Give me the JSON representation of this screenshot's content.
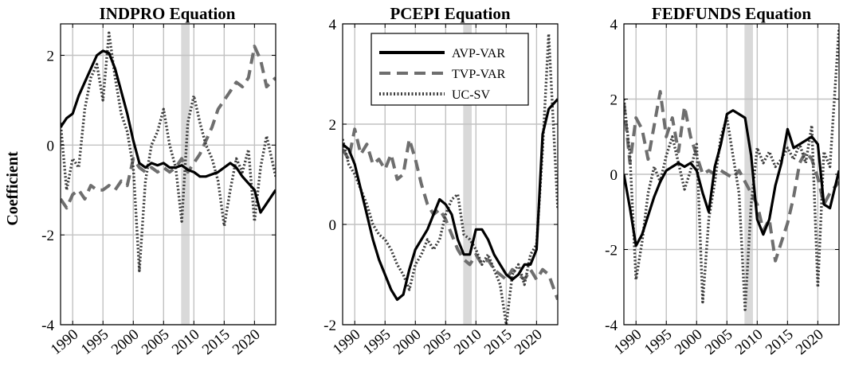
{
  "figure": {
    "ylabel": "Coefficient",
    "legend": {
      "placement": "top-center of second panel",
      "entries": [
        {
          "label": "AVP-VAR",
          "style": "solid",
          "color": "#000000"
        },
        {
          "label": "TVP-VAR",
          "style": "dashed",
          "color": "#6e6e6e"
        },
        {
          "label": "UC-SV",
          "style": "dotted",
          "color": "#3c3c3c"
        }
      ]
    },
    "recession_shading_color": "#d9d9d9"
  },
  "chart_data": [
    {
      "type": "line",
      "title": "INDPRO Equation",
      "xlim": [
        1988,
        2023.5
      ],
      "ylim": [
        -4,
        2.7
      ],
      "xticks": [
        1990,
        1995,
        2000,
        2005,
        2010,
        2015,
        2020
      ],
      "xtick_labels": [
        "1990",
        "1995",
        "2000",
        "2005",
        "2010",
        "2015",
        "2020"
      ],
      "yticks": [
        -4,
        -2,
        0,
        2
      ],
      "ytick_labels": [
        "-4",
        "-2",
        "0",
        "2"
      ],
      "grid": true,
      "recession_bands": [
        [
          2007.9,
          2009.3
        ]
      ],
      "series": [
        {
          "name": "AVP-VAR",
          "style": "solid",
          "x": [
            1988,
            1989,
            1990,
            1991,
            1992,
            1993,
            1994,
            1995,
            1996,
            1997,
            1998,
            1999,
            2000,
            2001,
            2002,
            2003,
            2004,
            2005,
            2006,
            2007,
            2008,
            2009,
            2010,
            2011,
            2012,
            2013,
            2014,
            2015,
            2016,
            2017,
            2018,
            2019,
            2020,
            2021,
            2022,
            2023.5
          ],
          "y": [
            0.4,
            0.6,
            0.7,
            1.1,
            1.4,
            1.7,
            2.0,
            2.1,
            2.05,
            1.7,
            1.2,
            0.7,
            0.1,
            -0.4,
            -0.5,
            -0.4,
            -0.45,
            -0.4,
            -0.5,
            -0.5,
            -0.45,
            -0.55,
            -0.6,
            -0.7,
            -0.7,
            -0.65,
            -0.6,
            -0.5,
            -0.4,
            -0.5,
            -0.7,
            -0.85,
            -1.0,
            -1.5,
            -1.3,
            -1.0
          ]
        },
        {
          "name": "TVP-VAR",
          "style": "dashed",
          "x": [
            1988,
            1989,
            1990,
            1991,
            1992,
            1993,
            1994,
            1995,
            1996,
            1997,
            1998,
            1999,
            2000,
            2001,
            2002,
            2003,
            2004,
            2005,
            2006,
            2007,
            2008,
            2009,
            2010,
            2011,
            2012,
            2013,
            2014,
            2015,
            2016,
            2017,
            2018,
            2019,
            2020,
            2021,
            2022,
            2023.5
          ],
          "y": [
            -1.2,
            -1.4,
            -1.1,
            -1.0,
            -1.2,
            -0.9,
            -1.0,
            -1.0,
            -0.9,
            -1.0,
            -0.8,
            -0.9,
            -0.3,
            -0.5,
            -0.6,
            -0.5,
            -0.6,
            -0.5,
            -0.6,
            -0.5,
            -0.3,
            -0.6,
            -0.4,
            -0.2,
            0.1,
            0.4,
            0.8,
            1.0,
            1.2,
            1.4,
            1.3,
            1.5,
            2.2,
            1.9,
            1.3,
            1.5
          ]
        },
        {
          "name": "UC-SV",
          "style": "dotted",
          "x": [
            1988,
            1989,
            1990,
            1991,
            1992,
            1993,
            1994,
            1995,
            1996,
            1997,
            1998,
            1999,
            2000,
            2001,
            2002,
            2003,
            2004,
            2005,
            2006,
            2007,
            2008,
            2009,
            2010,
            2011,
            2012,
            2013,
            2014,
            2015,
            2016,
            2017,
            2018,
            2019,
            2020,
            2021,
            2022,
            2023.5
          ],
          "y": [
            0.5,
            -1.0,
            -0.3,
            -0.5,
            0.8,
            1.5,
            1.8,
            1.0,
            2.5,
            1.5,
            0.7,
            0.3,
            -0.5,
            -2.8,
            -0.8,
            0.0,
            0.3,
            0.8,
            0.0,
            -0.5,
            -1.7,
            0.5,
            1.1,
            0.5,
            0.0,
            -0.3,
            -0.8,
            -1.8,
            -1.0,
            -0.3,
            -0.6,
            -0.1,
            -1.7,
            -0.5,
            0.2,
            -0.7
          ]
        }
      ]
    },
    {
      "type": "line",
      "title": "PCEPI Equation",
      "xlim": [
        1988,
        2023.5
      ],
      "ylim": [
        -2,
        4
      ],
      "xticks": [
        1990,
        1995,
        2000,
        2005,
        2010,
        2015,
        2020
      ],
      "xtick_labels": [
        "1990",
        "1995",
        "2000",
        "2005",
        "2010",
        "2015",
        "2020"
      ],
      "yticks": [
        -2,
        0,
        2,
        4
      ],
      "ytick_labels": [
        "-2",
        "0",
        "2",
        "4"
      ],
      "grid": true,
      "recession_bands": [
        [
          2007.9,
          2009.3
        ]
      ],
      "series": [
        {
          "name": "AVP-VAR",
          "style": "solid",
          "x": [
            1988,
            1989,
            1990,
            1991,
            1992,
            1993,
            1994,
            1995,
            1996,
            1997,
            1998,
            1999,
            2000,
            2001,
            2002,
            2003,
            2004,
            2005,
            2006,
            2007,
            2008,
            2009,
            2010,
            2011,
            2012,
            2013,
            2014,
            2015,
            2016,
            2017,
            2018,
            2019,
            2020,
            2021,
            2022,
            2023.5
          ],
          "y": [
            1.6,
            1.5,
            1.2,
            0.7,
            0.2,
            -0.3,
            -0.7,
            -1.0,
            -1.3,
            -1.5,
            -1.4,
            -0.9,
            -0.5,
            -0.3,
            -0.1,
            0.2,
            0.5,
            0.4,
            0.2,
            -0.3,
            -0.6,
            -0.6,
            -0.1,
            -0.1,
            -0.3,
            -0.6,
            -0.8,
            -1.0,
            -1.1,
            -1.0,
            -0.8,
            -0.8,
            -0.5,
            1.8,
            2.3,
            2.5
          ]
        },
        {
          "name": "TVP-VAR",
          "style": "dashed",
          "x": [
            1988,
            1989,
            1990,
            1991,
            1992,
            1993,
            1994,
            1995,
            1996,
            1997,
            1998,
            1999,
            2000,
            2001,
            2002,
            2003,
            2004,
            2005,
            2006,
            2007,
            2008,
            2009,
            2010,
            2011,
            2012,
            2013,
            2014,
            2015,
            2016,
            2017,
            2018,
            2019,
            2020,
            2021,
            2022,
            2023.5
          ],
          "y": [
            1.5,
            1.3,
            1.9,
            1.4,
            1.6,
            1.2,
            1.3,
            1.1,
            1.4,
            0.9,
            1.0,
            1.7,
            1.3,
            0.8,
            0.4,
            0.2,
            0.3,
            0.1,
            -0.2,
            -0.5,
            -0.7,
            -0.8,
            -0.6,
            -0.8,
            -0.7,
            -0.9,
            -1.0,
            -1.1,
            -0.9,
            -1.0,
            -1.1,
            -0.9,
            -1.1,
            -0.9,
            -1.0,
            -1.5
          ]
        },
        {
          "name": "UC-SV",
          "style": "dotted",
          "x": [
            1988,
            1989,
            1990,
            1991,
            1992,
            1993,
            1994,
            1995,
            1996,
            1997,
            1998,
            1999,
            2000,
            2001,
            2002,
            2003,
            2004,
            2005,
            2006,
            2007,
            2008,
            2009,
            2010,
            2011,
            2012,
            2013,
            2014,
            2015,
            2016,
            2017,
            2018,
            2019,
            2020,
            2021,
            2022,
            2023.5
          ],
          "y": [
            1.7,
            1.2,
            1.0,
            0.7,
            0.4,
            0.0,
            -0.2,
            -0.3,
            -0.5,
            -0.8,
            -1.0,
            -1.3,
            -0.8,
            -0.6,
            -0.3,
            -0.5,
            -0.3,
            0.2,
            0.5,
            0.6,
            -0.2,
            -0.3,
            -0.5,
            -0.8,
            -0.6,
            -0.9,
            -1.2,
            -2.0,
            -1.0,
            -0.8,
            -1.2,
            -0.6,
            -0.4,
            1.5,
            3.8,
            0.3
          ]
        }
      ]
    },
    {
      "type": "line",
      "title": "FEDFUNDS Equation",
      "xlim": [
        1988,
        2023.5
      ],
      "ylim": [
        -4,
        4
      ],
      "xticks": [
        1990,
        1995,
        2000,
        2005,
        2010,
        2015,
        2020
      ],
      "xtick_labels": [
        "1990",
        "1995",
        "2000",
        "2005",
        "2010",
        "2015",
        "2020"
      ],
      "yticks": [
        -4,
        -2,
        0,
        2,
        4
      ],
      "ytick_labels": [
        "-4",
        "-2",
        "0",
        "2",
        "4"
      ],
      "grid": true,
      "recession_bands": [
        [
          2007.9,
          2009.3
        ]
      ],
      "series": [
        {
          "name": "AVP-VAR",
          "style": "solid",
          "x": [
            1988,
            1989,
            1990,
            1991,
            1992,
            1993,
            1994,
            1995,
            1996,
            1997,
            1998,
            1999,
            2000,
            2001,
            2002,
            2003,
            2004,
            2005,
            2006,
            2007,
            2008,
            2009,
            2010,
            2011,
            2012,
            2013,
            2014,
            2015,
            2016,
            2017,
            2018,
            2019,
            2020,
            2021,
            2022,
            2023.5
          ],
          "y": [
            0.0,
            -0.9,
            -1.9,
            -1.6,
            -1.1,
            -0.6,
            -0.2,
            0.1,
            0.2,
            0.3,
            0.2,
            0.3,
            0.1,
            -0.5,
            -1.0,
            0.2,
            0.8,
            1.6,
            1.7,
            1.6,
            1.5,
            0.5,
            -1.2,
            -1.6,
            -1.2,
            -0.3,
            0.3,
            1.2,
            0.7,
            0.8,
            0.9,
            1.0,
            0.8,
            -0.8,
            -0.9,
            0.1
          ]
        },
        {
          "name": "TVP-VAR",
          "style": "dashed",
          "x": [
            1988,
            1989,
            1990,
            1991,
            1992,
            1993,
            1994,
            1995,
            1996,
            1997,
            1998,
            1999,
            2000,
            2001,
            2002,
            2003,
            2004,
            2005,
            2006,
            2007,
            2008,
            2009,
            2010,
            2011,
            2012,
            2013,
            2014,
            2015,
            2016,
            2017,
            2018,
            2019,
            2020,
            2021,
            2022,
            2023.5
          ],
          "y": [
            1.9,
            0.3,
            1.5,
            1.2,
            0.4,
            1.3,
            2.2,
            1.0,
            1.5,
            0.6,
            1.8,
            1.0,
            0.5,
            0.0,
            0.1,
            0.0,
            0.1,
            0.0,
            -0.1,
            0.1,
            -0.2,
            -0.5,
            -0.8,
            -1.5,
            -1.2,
            -2.3,
            -1.8,
            -1.3,
            -0.6,
            0.3,
            0.6,
            0.4,
            -0.1,
            -0.8,
            -0.5,
            -0.2
          ]
        },
        {
          "name": "UC-SV",
          "style": "dotted",
          "x": [
            1988,
            1989,
            1990,
            1991,
            1992,
            1993,
            1994,
            1995,
            1996,
            1997,
            1998,
            1999,
            2000,
            2001,
            2002,
            2003,
            2004,
            2005,
            2006,
            2007,
            2008,
            2009,
            2010,
            2011,
            2012,
            2013,
            2014,
            2015,
            2016,
            2017,
            2018,
            2019,
            2020,
            2021,
            2022,
            2023.5
          ],
          "y": [
            2.0,
            0.5,
            -2.8,
            -1.8,
            -0.5,
            0.2,
            -0.2,
            0.5,
            1.0,
            0.3,
            -0.4,
            0.1,
            0.8,
            -3.4,
            -1.2,
            -0.2,
            1.0,
            1.5,
            0.5,
            -0.5,
            -3.6,
            -0.8,
            0.7,
            0.3,
            0.6,
            0.2,
            0.4,
            0.7,
            0.4,
            0.8,
            0.3,
            1.3,
            -3.0,
            0.6,
            0.2,
            3.9
          ]
        }
      ]
    }
  ]
}
